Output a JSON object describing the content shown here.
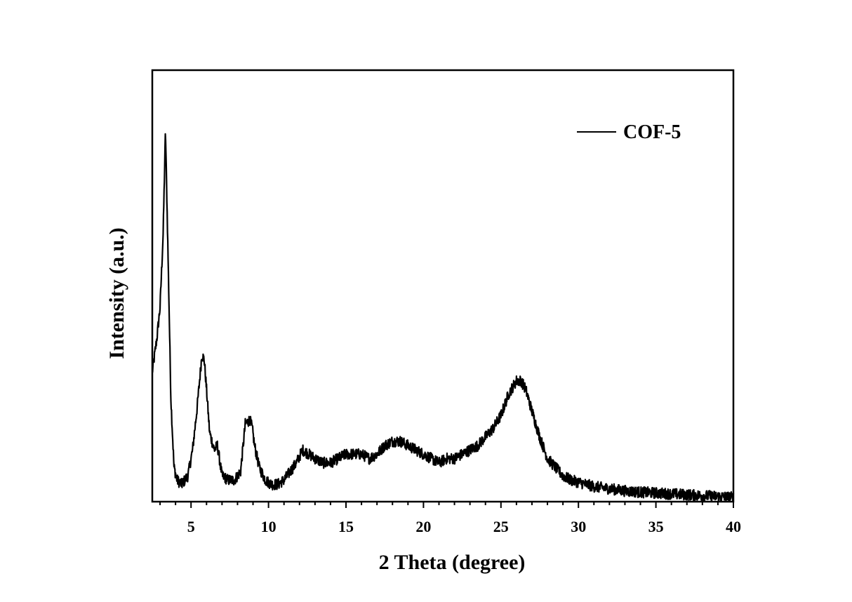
{
  "chart_data": {
    "type": "line",
    "title": "",
    "xlabel": "2 Theta (degree)",
    "ylabel": "Intensity (a.u.)",
    "xlim": [
      2.5,
      40
    ],
    "ylim": [
      0,
      100
    ],
    "x_ticks": [
      5,
      10,
      15,
      20,
      25,
      30,
      35,
      40
    ],
    "x_minor_step": 1,
    "grid": false,
    "legend": {
      "position": "top-right"
    },
    "series": [
      {
        "name": "COF-5",
        "color": "#000000",
        "x": [
          2.5,
          2.8,
          3.0,
          3.2,
          3.35,
          3.5,
          3.7,
          3.9,
          4.1,
          4.4,
          4.8,
          5.1,
          5.4,
          5.7,
          5.85,
          6.0,
          6.2,
          6.5,
          6.7,
          7.0,
          7.4,
          7.8,
          8.2,
          8.5,
          8.8,
          8.95,
          9.1,
          9.4,
          9.8,
          10.2,
          10.6,
          11.0,
          11.4,
          11.8,
          12.2,
          12.6,
          13.0,
          13.5,
          14.0,
          14.5,
          15.0,
          15.5,
          16.0,
          16.5,
          17.0,
          17.5,
          18.0,
          18.5,
          19.0,
          19.5,
          20.0,
          20.5,
          21.0,
          21.5,
          22.0,
          22.5,
          23.0,
          23.5,
          24.0,
          24.5,
          25.0,
          25.5,
          26.0,
          26.3,
          26.6,
          27.0,
          27.5,
          28.0,
          28.5,
          29.0,
          29.5,
          30.0,
          31.0,
          32.0,
          33.0,
          34.0,
          35.0,
          36.0,
          37.0,
          38.0,
          39.0,
          40.0
        ],
        "y": [
          30,
          38,
          45,
          62,
          86,
          60,
          24,
          8,
          5,
          4,
          6,
          12,
          22,
          34,
          33,
          26,
          16,
          12,
          13,
          6,
          5,
          5,
          7,
          18,
          19,
          17,
          13,
          8,
          5,
          4,
          4,
          5,
          7,
          9,
          12,
          11,
          10,
          9,
          9,
          10,
          11,
          11,
          11,
          10,
          11,
          13,
          14,
          14,
          13,
          12,
          11,
          10,
          9,
          10,
          10,
          11,
          12,
          13,
          15,
          17,
          20,
          25,
          28,
          28,
          26,
          21,
          15,
          10,
          8,
          6,
          5,
          4.5,
          3.5,
          3,
          2.5,
          2.2,
          2,
          1.8,
          1.6,
          1.4,
          1.2,
          1
        ]
      }
    ]
  }
}
